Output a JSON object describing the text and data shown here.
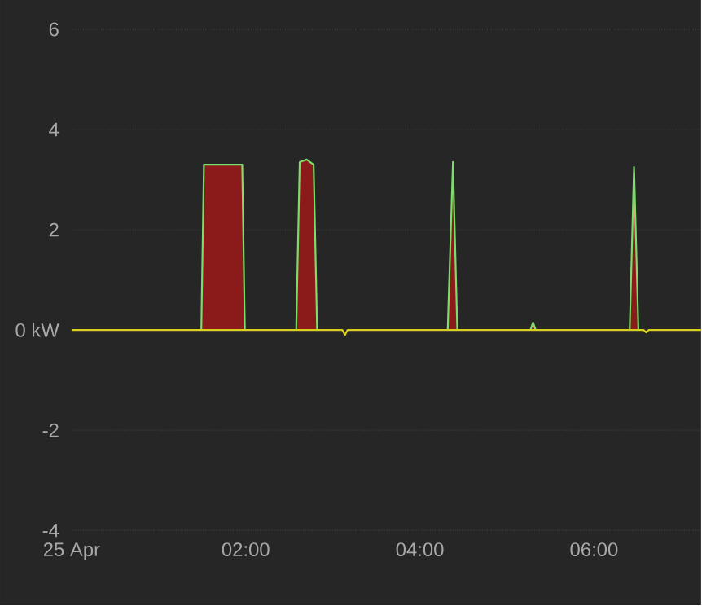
{
  "chart_data": {
    "type": "line",
    "xlim": [
      0,
      7.23
    ],
    "ylim": [
      -4,
      6
    ],
    "xticks": [
      {
        "value": 0,
        "label": "25 Apr"
      },
      {
        "value": 2,
        "label": "02:00"
      },
      {
        "value": 4,
        "label": "04:00"
      },
      {
        "value": 6,
        "label": "06:00"
      }
    ],
    "yticks": [
      -4,
      -2,
      {
        "value": 0,
        "label": "0 kW"
      },
      2,
      4,
      6
    ],
    "grid": "y",
    "series": [
      {
        "type": "area",
        "color": "#8b1a1a",
        "x": [
          0,
          1.49,
          1.52,
          1.96,
          1.99,
          2.58,
          2.62,
          2.7,
          2.78,
          2.82,
          4.32,
          4.38,
          4.43,
          5.27,
          5.3,
          5.33,
          6.41,
          6.46,
          6.51,
          7.23
        ],
        "values": [
          0,
          0,
          3.3,
          3.3,
          0,
          0,
          3.35,
          3.4,
          3.3,
          0,
          0,
          3.35,
          0,
          0,
          0.15,
          0,
          0,
          3.25,
          0,
          0
        ]
      },
      {
        "color": "#7ddc6a",
        "x": [
          1.49,
          1.52,
          1.96,
          1.99,
          2.3,
          2.58,
          2.62,
          2.7,
          2.78,
          2.82,
          3.5,
          4.32,
          4.38,
          4.43,
          4.9,
          5.27,
          5.3,
          5.33,
          6.0,
          6.41,
          6.46,
          6.51
        ],
        "values": [
          0,
          3.3,
          3.3,
          0,
          null,
          0,
          3.35,
          3.4,
          3.3,
          0,
          null,
          0,
          3.35,
          0,
          null,
          0,
          0.15,
          0,
          null,
          0,
          3.25,
          0
        ]
      },
      {
        "color": "#d8d020",
        "x": [
          0,
          3.11,
          3.14,
          3.17,
          6.57,
          6.6,
          6.63,
          7.23
        ],
        "values": [
          0,
          0,
          -0.1,
          0,
          0,
          -0.05,
          0,
          0
        ]
      }
    ]
  }
}
